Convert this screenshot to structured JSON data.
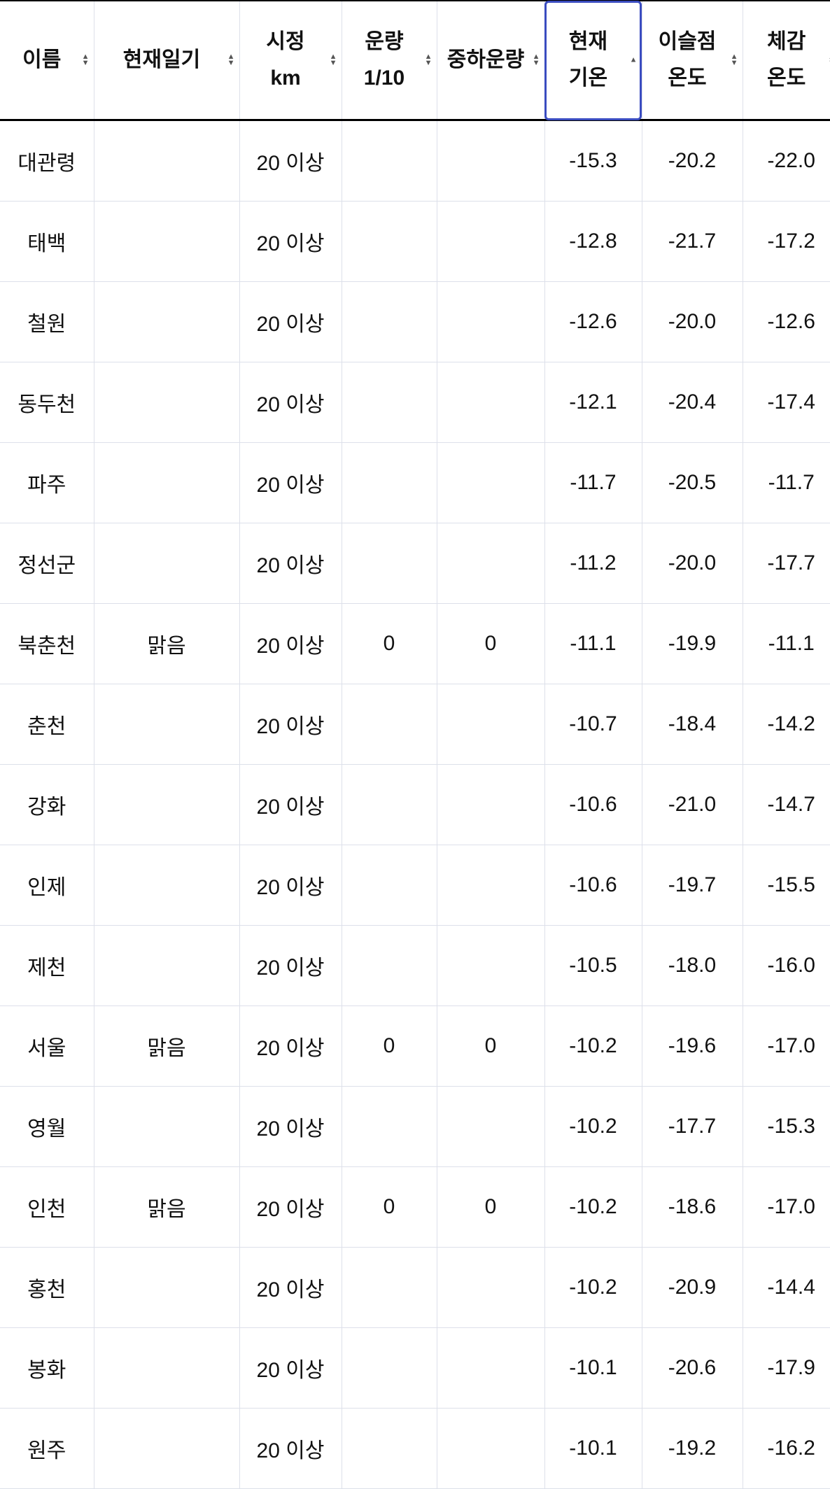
{
  "columns": [
    {
      "label": "이름",
      "sort": "both"
    },
    {
      "label": "현재일기",
      "sort": "both"
    },
    {
      "label": "시정 km",
      "sort": "both"
    },
    {
      "label": "운량 1/10",
      "sort": "both"
    },
    {
      "label": "중하운량",
      "sort": "both"
    },
    {
      "label": "현재 기온",
      "sort": "asc",
      "active": true
    },
    {
      "label": "이슬점 온도",
      "sort": "both"
    },
    {
      "label": "체감 온도",
      "sort": "both"
    }
  ],
  "rows": [
    [
      "대관령",
      "",
      "20 이상",
      "",
      "",
      "-15.3",
      "-20.2",
      "-22.0"
    ],
    [
      "태백",
      "",
      "20 이상",
      "",
      "",
      "-12.8",
      "-21.7",
      "-17.2"
    ],
    [
      "철원",
      "",
      "20 이상",
      "",
      "",
      "-12.6",
      "-20.0",
      "-12.6"
    ],
    [
      "동두천",
      "",
      "20 이상",
      "",
      "",
      "-12.1",
      "-20.4",
      "-17.4"
    ],
    [
      "파주",
      "",
      "20 이상",
      "",
      "",
      "-11.7",
      "-20.5",
      "-11.7"
    ],
    [
      "정선군",
      "",
      "20 이상",
      "",
      "",
      "-11.2",
      "-20.0",
      "-17.7"
    ],
    [
      "북춘천",
      "맑음",
      "20 이상",
      "0",
      "0",
      "-11.1",
      "-19.9",
      "-11.1"
    ],
    [
      "춘천",
      "",
      "20 이상",
      "",
      "",
      "-10.7",
      "-18.4",
      "-14.2"
    ],
    [
      "강화",
      "",
      "20 이상",
      "",
      "",
      "-10.6",
      "-21.0",
      "-14.7"
    ],
    [
      "인제",
      "",
      "20 이상",
      "",
      "",
      "-10.6",
      "-19.7",
      "-15.5"
    ],
    [
      "제천",
      "",
      "20 이상",
      "",
      "",
      "-10.5",
      "-18.0",
      "-16.0"
    ],
    [
      "서울",
      "맑음",
      "20 이상",
      "0",
      "0",
      "-10.2",
      "-19.6",
      "-17.0"
    ],
    [
      "영월",
      "",
      "20 이상",
      "",
      "",
      "-10.2",
      "-17.7",
      "-15.3"
    ],
    [
      "인천",
      "맑음",
      "20 이상",
      "0",
      "0",
      "-10.2",
      "-18.6",
      "-17.0"
    ],
    [
      "홍천",
      "",
      "20 이상",
      "",
      "",
      "-10.2",
      "-20.9",
      "-14.4"
    ],
    [
      "봉화",
      "",
      "20 이상",
      "",
      "",
      "-10.1",
      "-20.6",
      "-17.9"
    ],
    [
      "원주",
      "",
      "20 이상",
      "",
      "",
      "-10.1",
      "-19.2",
      "-16.2"
    ]
  ]
}
